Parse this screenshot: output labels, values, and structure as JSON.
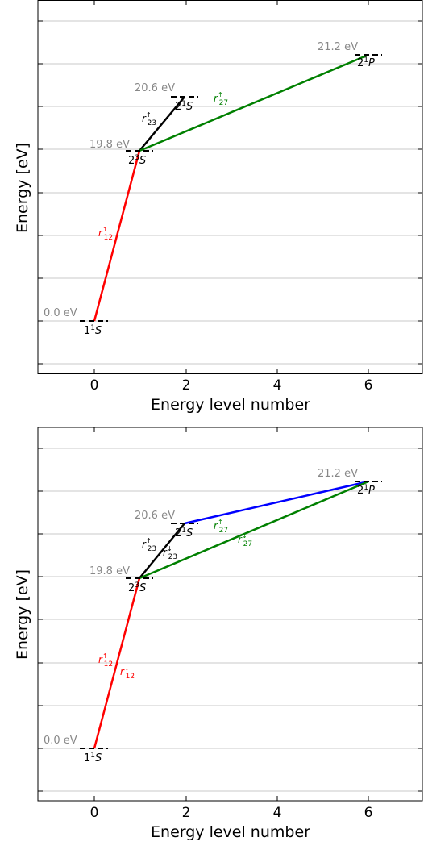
{
  "panels": [
    {
      "xlabel": "Energy level number",
      "ylabel": "Energy [eV]",
      "x_ticks": [
        "0",
        "2",
        "4",
        "6"
      ],
      "levels": [
        {
          "n": 0,
          "energy": 0.0,
          "energy_label": "0.0 eV",
          "state": "1",
          "term": "S"
        },
        {
          "n": 1,
          "energy": 19.8,
          "energy_label": "19.8 eV",
          "state": "2",
          "term": "S"
        },
        {
          "n": 2,
          "energy": 20.6,
          "energy_label": "20.6 eV",
          "state": "2",
          "term": "S"
        },
        {
          "n": 6,
          "energy": 21.2,
          "energy_label": "21.2 eV",
          "state": "2",
          "term": "P"
        }
      ],
      "transitions": [
        {
          "from": 0,
          "to": 1,
          "color": "#ff0000",
          "label": "r",
          "sub": "12",
          "sup": "↑"
        },
        {
          "from": 1,
          "to": 2,
          "color": "#000000",
          "label": "r",
          "sub": "23",
          "sup": "↑"
        },
        {
          "from": 1,
          "to": 6,
          "color": "#008000",
          "label": "r",
          "sub": "27",
          "sup": "↑"
        }
      ]
    },
    {
      "xlabel": "Energy level number",
      "ylabel": "Energy [eV]",
      "x_ticks": [
        "0",
        "2",
        "4",
        "6"
      ],
      "levels": [
        {
          "n": 0,
          "energy": 0.0,
          "energy_label": "0.0 eV",
          "state": "1",
          "term": "S"
        },
        {
          "n": 1,
          "energy": 19.8,
          "energy_label": "19.8 eV",
          "state": "2",
          "term": "S"
        },
        {
          "n": 2,
          "energy": 20.6,
          "energy_label": "20.6 eV",
          "state": "2",
          "term": "S"
        },
        {
          "n": 6,
          "energy": 21.2,
          "energy_label": "21.2 eV",
          "state": "2",
          "term": "P"
        }
      ],
      "transitions": [
        {
          "from": 0,
          "to": 1,
          "color": "#ff0000",
          "labels": [
            {
              "label": "r",
              "sub": "12",
              "sup": "↑"
            },
            {
              "label": "r",
              "sub": "12",
              "sup": "↓"
            }
          ]
        },
        {
          "from": 1,
          "to": 2,
          "color": "#000000",
          "labels": [
            {
              "label": "r",
              "sub": "23",
              "sup": "↑"
            },
            {
              "label": "r",
              "sub": "23",
              "sup": "↓"
            }
          ]
        },
        {
          "from": 2,
          "to": 6,
          "color": "#0000ff",
          "labels": [
            {
              "label": "r",
              "sub": "27",
              "sup": "↑"
            }
          ]
        },
        {
          "from": 1,
          "to": 6,
          "color": "#008000",
          "labels": [
            {
              "label": "r",
              "sub": "27",
              "sup": "↓"
            }
          ]
        }
      ]
    }
  ],
  "colors": {
    "red": "#ff0000",
    "black": "#000000",
    "green": "#008000",
    "blue": "#0000ff",
    "energy_label": "#888888",
    "grid": "#c8c8c8"
  }
}
